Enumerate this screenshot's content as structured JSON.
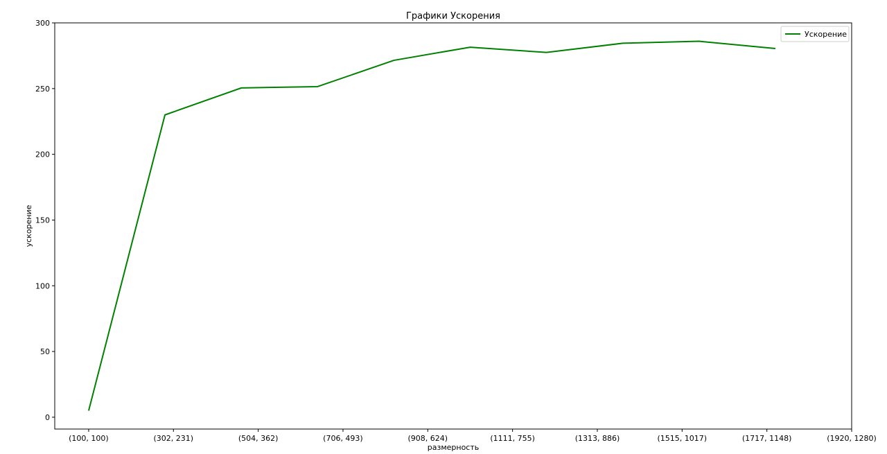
{
  "chart_data": {
    "type": "line",
    "title": "Графики Ускорения",
    "xlabel": "размерность",
    "ylabel": "ускорение",
    "categories": [
      "(100, 100)",
      "(302, 231)",
      "(504, 362)",
      "(706, 493)",
      "(908, 624)",
      "(1111, 755)",
      "(1313, 886)",
      "(1515, 1017)",
      "(1717, 1148)",
      "(1920, 1280)"
    ],
    "x": [
      0,
      0.9,
      1.8,
      2.7,
      3.6,
      4.5,
      5.4,
      6.3,
      7.2,
      8.1
    ],
    "series": [
      {
        "name": "Ускорение",
        "color": "#008000",
        "values": [
          5,
          230,
          250.5,
          251.5,
          271.5,
          281.5,
          277.5,
          284.5,
          286,
          280.5
        ]
      }
    ],
    "xlim": [
      -0.4,
      9
    ],
    "ylim": [
      -9,
      300
    ],
    "yticks": [
      0,
      50,
      100,
      150,
      200,
      250,
      300
    ],
    "ytick_labels": [
      "0",
      "50",
      "100",
      "150",
      "200",
      "250",
      "300"
    ],
    "grid": false,
    "legend_position": "top-right"
  }
}
